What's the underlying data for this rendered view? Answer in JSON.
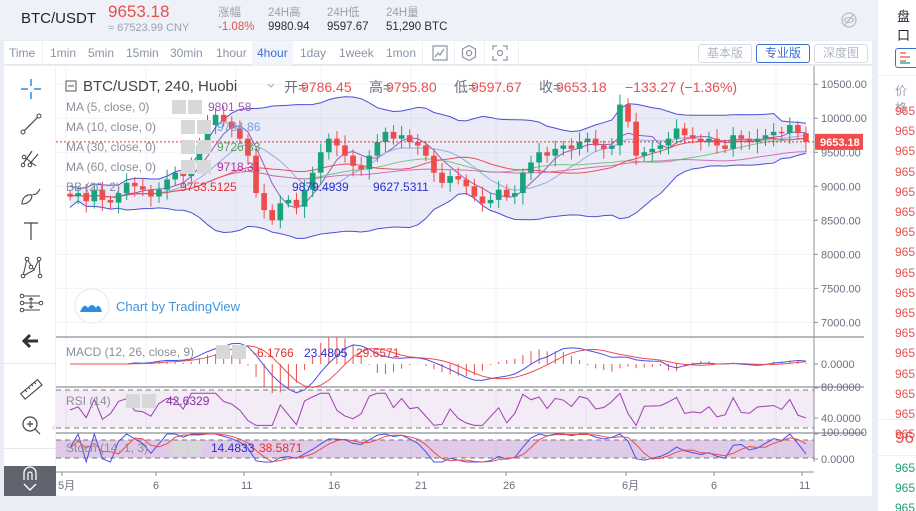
{
  "ticker": {
    "pair": "BTC/USDT",
    "last_price": "9653.18",
    "cny_equiv": "≈ 67523.99 CNY",
    "stats": [
      {
        "label": "涨幅",
        "value": "-1.08%",
        "color": "#e8504f"
      },
      {
        "label": "24H高",
        "value": "9980.94",
        "color": "#2a3040"
      },
      {
        "label": "24H低",
        "value": "9597.67",
        "color": "#2a3040"
      },
      {
        "label": "24H量",
        "value": "51,290 BTC",
        "color": "#2a3040"
      }
    ]
  },
  "toolbar": {
    "intervals": [
      "Time",
      "1min",
      "5min",
      "15min",
      "30min",
      "1hour",
      "4hour",
      "1day",
      "1week",
      "1mon"
    ],
    "active_interval": "4hour",
    "icons": [
      "indicator-icon",
      "settings-icon",
      "fullscreen-icon"
    ],
    "versions": [
      "基本版",
      "专业版",
      "深度图"
    ],
    "active_version": "专业版"
  },
  "left_tools": [
    "crosshair-icon",
    "trend-line-icon",
    "pitchfork-icon",
    "brush-icon",
    "text-icon",
    "pattern-icon",
    "measure-icon",
    "back-arrow-icon",
    "ruler-icon",
    "zoom-in-icon",
    "magnet-icon"
  ],
  "chart": {
    "legend_title": "BTC/USDT, 240, Huobi",
    "ohlc": [
      {
        "label": "开=",
        "value": "9786.45"
      },
      {
        "label": "高=",
        "value": "9795.80"
      },
      {
        "label": "低=",
        "value": "9597.67"
      },
      {
        "label": "收=",
        "value": "9653.18"
      }
    ],
    "change": "−133.27 (−1.36%)",
    "indicators": [
      {
        "name": "MA (5, close, 0)",
        "value": "9801.58",
        "color": "#9b59b6"
      },
      {
        "name": "MA (10, close, 0)",
        "value": "9784.86",
        "color": "#6fa0d8"
      },
      {
        "name": "MA (30, close, 0)",
        "value": "9726.33",
        "color": "#5aa05a"
      },
      {
        "name": "MA (60, close, 0)",
        "value": "9718.31",
        "color": "#b0309a"
      }
    ],
    "bb": {
      "name": "BB (20, 2)",
      "values": [
        "9753.5125",
        "9879.4939",
        "9627.5311"
      ],
      "colors": [
        "#e8302f",
        "#2a2fd1",
        "#2a2fd1"
      ]
    },
    "watermark": "Chart by TradingView",
    "price_label": "9653.18",
    "macd": {
      "name": "MACD (12, 26, close, 9)",
      "values": [
        "-6.1766",
        "23.4805",
        "29.6571"
      ],
      "colors": [
        "#e8302f",
        "#2a2fd1",
        "#e8302f"
      ]
    },
    "rsi": {
      "name": "RSI (14)",
      "value": "42.6329"
    },
    "stoch": {
      "name": "Stoch (14, 1, 3)",
      "values": [
        "14.4833",
        "38.5871"
      ],
      "colors": [
        "#2a2fd1",
        "#e8302f"
      ]
    }
  },
  "chart_data": {
    "type": "candlestick",
    "title": "BTC/USDT, 240, Huobi",
    "y_ticks": [
      "10500.00",
      "10000.00",
      "9500.00",
      "9000.00",
      "8500.00",
      "8000.00",
      "7500.00",
      "7000.00"
    ],
    "ylim": [
      6800,
      10650
    ],
    "x_ticks": [
      "5月",
      "6",
      "11",
      "16",
      "21",
      "26",
      "6月",
      "6",
      "11"
    ],
    "macd_ticks": [
      "0.0000"
    ],
    "rsi_ticks": [
      "80.0000",
      "40.0000"
    ],
    "stoch_ticks": [
      "100.0000",
      "0.0000"
    ],
    "close_series": [
      8850,
      8900,
      8780,
      8950,
      8800,
      8760,
      8900,
      9050,
      9000,
      8950,
      8850,
      8950,
      9100,
      9200,
      9150,
      9350,
      9600,
      9900,
      10050,
      9950,
      9850,
      9700,
      9450,
      8900,
      8650,
      8500,
      8750,
      8800,
      8700,
      8950,
      9200,
      9500,
      9700,
      9600,
      9450,
      9300,
      9250,
      9450,
      9650,
      9800,
      9700,
      9750,
      9650,
      9600,
      9450,
      9200,
      9050,
      9150,
      9100,
      9000,
      8850,
      8750,
      8800,
      8950,
      8850,
      8900,
      9200,
      9350,
      9500,
      9450,
      9550,
      9600,
      9550,
      9650,
      9700,
      9600,
      9550,
      9600,
      10200,
      9950,
      9450,
      9500,
      9550,
      9600,
      9700,
      9850,
      9750,
      9700,
      9650,
      9700,
      9600,
      9550,
      9750,
      9700,
      9650,
      9700,
      9750,
      9800,
      9780,
      9900,
      9780,
      9653
    ]
  },
  "sidepanel": {
    "title": "盘口",
    "header": "价格",
    "asks": [
      "965",
      "965",
      "965",
      "965",
      "965",
      "965",
      "965",
      "965",
      "965",
      "965",
      "965",
      "965",
      "965",
      "965",
      "965",
      "965",
      "965"
    ],
    "mid": "96",
    "bids": [
      "965",
      "965",
      "965"
    ]
  }
}
